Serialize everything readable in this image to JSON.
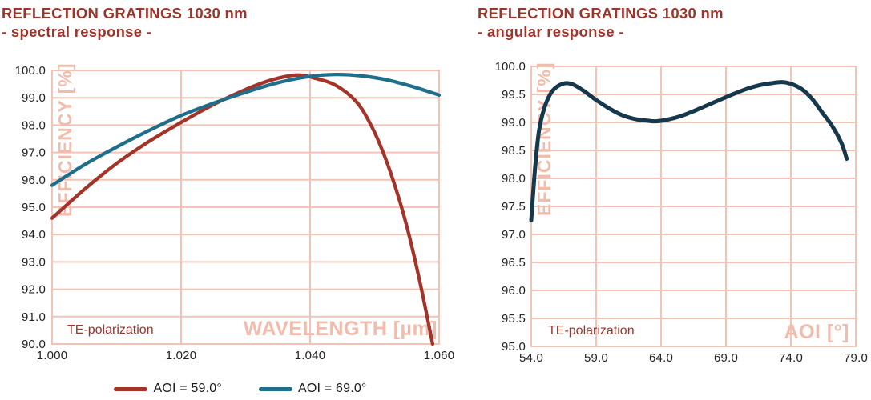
{
  "page": {
    "background": "#ffffff"
  },
  "colors": {
    "title_red": "#9C352B",
    "grid_pink": "#F2C3B6",
    "watermark_pink": "#F2BCAD",
    "tick_text": "#212121",
    "series_red": "#A3342A",
    "series_teal": "#1E6E8C",
    "series_navy": "#16384C"
  },
  "chart_data": [
    {
      "id": "spectral",
      "type": "line",
      "title": "REFLECTION GRATINGS 1030 nm",
      "subtitle": "- spectral response -",
      "xlabel": "WAVELENGTH [µm]",
      "ylabel": "EFFICIENCY [%]",
      "annotation": "TE-polarization",
      "grid": true,
      "legend_position": "bottom",
      "xlim": [
        1.0,
        1.06
      ],
      "ylim": [
        90.0,
        100.0
      ],
      "xticks": [
        1.0,
        1.02,
        1.04,
        1.06
      ],
      "xtick_labels": [
        "1.000",
        "1.020",
        "1.040",
        "1.060"
      ],
      "yticks": [
        90.0,
        91.0,
        92.0,
        93.0,
        94.0,
        95.0,
        96.0,
        97.0,
        98.0,
        99.0,
        100.0
      ],
      "ytick_labels": [
        "90.0",
        "91.0",
        "92.0",
        "93.0",
        "94.0",
        "95.0",
        "96.0",
        "97.0",
        "98.0",
        "99.0",
        "100.0"
      ],
      "series": [
        {
          "name": "AOI = 59.0°",
          "color": "#A3342A",
          "x": [
            1.0,
            1.005,
            1.01,
            1.015,
            1.02,
            1.025,
            1.03,
            1.034,
            1.038,
            1.041,
            1.044,
            1.047,
            1.049,
            1.051,
            1.053,
            1.055,
            1.057,
            1.059
          ],
          "y": [
            94.6,
            95.65,
            96.6,
            97.4,
            98.1,
            98.75,
            99.3,
            99.65,
            99.83,
            99.7,
            99.45,
            98.9,
            98.2,
            97.2,
            95.9,
            94.3,
            92.3,
            90.0
          ]
        },
        {
          "name": "AOI = 69.0°",
          "color": "#1E6E8C",
          "x": [
            1.0,
            1.005,
            1.01,
            1.015,
            1.02,
            1.025,
            1.03,
            1.035,
            1.04,
            1.044,
            1.048,
            1.052,
            1.056,
            1.06
          ],
          "y": [
            95.8,
            96.55,
            97.2,
            97.8,
            98.35,
            98.8,
            99.2,
            99.55,
            99.78,
            99.85,
            99.8,
            99.65,
            99.4,
            99.1
          ]
        }
      ]
    },
    {
      "id": "angular",
      "type": "line",
      "title": "REFLECTION GRATINGS 1030 nm",
      "subtitle": "- angular response -",
      "xlabel": "AOI [°]",
      "ylabel": "EFFICIENCY [%]",
      "annotation": "TE-polarization",
      "grid": true,
      "legend_position": "none",
      "xlim": [
        54.0,
        79.0
      ],
      "ylim": [
        95.0,
        100.0
      ],
      "xticks": [
        54.0,
        59.0,
        64.0,
        69.0,
        74.0,
        79.0
      ],
      "xtick_labels": [
        "54.0",
        "59.0",
        "64.0",
        "69.0",
        "74.0",
        "79.0"
      ],
      "yticks": [
        95.0,
        95.5,
        96.0,
        96.5,
        97.0,
        97.5,
        98.0,
        98.5,
        99.0,
        99.5,
        100.0
      ],
      "ytick_labels": [
        "95.0",
        "95.5",
        "96.0",
        "96.5",
        "97.0",
        "97.5",
        "98.0",
        "98.5",
        "99.0",
        "99.5",
        "100.0"
      ],
      "series": [
        {
          "name": "",
          "color": "#16384C",
          "x": [
            54.0,
            54.3,
            54.6,
            55.0,
            55.5,
            56.0,
            56.6,
            57.2,
            58.0,
            59.0,
            60.0,
            61.0,
            62.0,
            63.0,
            63.6,
            64.5,
            65.5,
            66.5,
            67.5,
            68.5,
            69.5,
            70.5,
            71.5,
            72.5,
            73.3,
            74.0,
            74.8,
            75.6,
            76.4,
            77.2,
            77.9,
            78.3
          ],
          "y": [
            97.25,
            98.2,
            98.85,
            99.25,
            99.52,
            99.64,
            99.7,
            99.68,
            99.57,
            99.4,
            99.25,
            99.13,
            99.06,
            99.03,
            99.02,
            99.05,
            99.11,
            99.2,
            99.3,
            99.4,
            99.5,
            99.59,
            99.66,
            99.7,
            99.72,
            99.69,
            99.6,
            99.43,
            99.18,
            98.93,
            98.63,
            98.35
          ]
        }
      ]
    }
  ]
}
